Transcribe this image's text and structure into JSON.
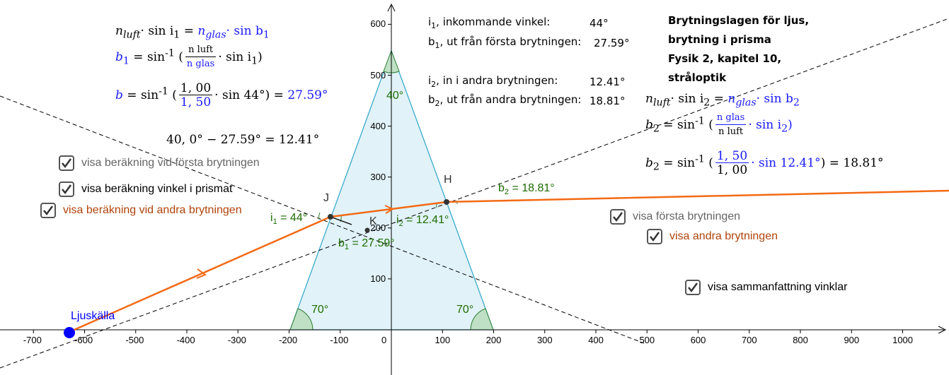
{
  "summary": {
    "line1_label": "i",
    "line1_sub": "1",
    "line1_text": ", inkommande vinkel:",
    "line1_value": "44°",
    "line2_label": "b",
    "line2_sub": "1",
    "line2_text": ", ut från första brytningen:",
    "line2_value": "27.59°",
    "line3_label": "i",
    "line3_sub": "2",
    "line3_text": ", in i andra brytningen:",
    "line3_value": "12.41°",
    "line4_label": "b",
    "line4_sub": "2",
    "line4_text": ", ut från andra brytningen:",
    "line4_value": "18.81°"
  },
  "title": {
    "line1": "Brytningslagen för ljus,",
    "line2": "brytning i prisma",
    "line3": "Fysik 2, kapitel 10,",
    "line4": "stråloptik"
  },
  "formulas_left": {
    "f1_n": "n",
    "f1_luft": "luft",
    "f1_mid": "· sin i",
    "f1_sub1": "1",
    "f1_eq": " = ",
    "f1_nglas": "n",
    "f1_glas": "glas",
    "f1_end": "·  sin b",
    "f1_sub2": "1",
    "f2_lhs": "b",
    "f2_lhs_sub": "1",
    "f2_eq": " = sin",
    "f2_exp": "-1",
    "f2_num": "n luft",
    "f2_den": "n glas",
    "f2_tail": "·  sin i",
    "f2_tail_sub": "1",
    "f3_lhs": "b",
    "f3_eq": " = sin",
    "f3_exp": "-1",
    "f3_num": "1, 00",
    "f3_den": "1, 50",
    "f3_tail": "·  sin 44°) = ",
    "f3_result": "27.59°",
    "f4": "40, 0° − 27.59° = 12.41°"
  },
  "formulas_right": {
    "f1_a": "n",
    "f1_luft": "luft",
    "f1_mid": "· sin i",
    "f1_sub": "2",
    "f1_eq": " = ",
    "f1_n": "n",
    "f1_glas": "glas",
    "f1_end": "·  sin b",
    "f1_sub2": "2",
    "f2_lhs": "b",
    "f2_sub": "2",
    "f2_eq": " = sin",
    "f2_exp": "-1",
    "f2_num": "n glas",
    "f2_den": "n luft",
    "f2_tail": "·  sin i",
    "f2_tail_sub": "2",
    "f3_lhs": "b",
    "f3_sub": "2",
    "f3_eq": " = sin",
    "f3_exp": "-1",
    "f3_num": "1, 50",
    "f3_den": "1, 00",
    "f3_tail": "·  sin 12.41°",
    "f3_result": ") = 18.81°"
  },
  "checkboxes": {
    "first_calc": {
      "label": "visa beräkning vid första brytningen",
      "color": "#666666",
      "checked": true
    },
    "prism_angle": {
      "label": "visa beräkning vinkel i prismat",
      "color": "#000000",
      "checked": true
    },
    "second_calc": {
      "label": "visa beräkning vid andra brytningen",
      "color": "#b0440b",
      "checked": true
    },
    "first_refr": {
      "label": "visa första brytningen",
      "color": "#666666",
      "checked": true
    },
    "second_refr": {
      "label": "visa andra brytningen",
      "color": "#b0440b",
      "checked": true
    },
    "summary_angles": {
      "label": "visa sammanfattning vinklar",
      "color": "#000000",
      "checked": true
    }
  },
  "graph": {
    "x_ticks": [
      "-700",
      "-600",
      "-500",
      "-400",
      "-300",
      "-200",
      "-100",
      "0",
      "100",
      "200",
      "300",
      "400",
      "500",
      "600",
      "700",
      "800",
      "900",
      "1000"
    ],
    "y_ticks": [
      "100",
      "200",
      "300",
      "400",
      "500",
      "600"
    ],
    "point_J": "J",
    "point_K": "K",
    "point_H": "H",
    "source_label": "Ljuskälla",
    "apex_angle": "40°",
    "left_base_angle": "70°",
    "right_base_angle": "70°",
    "angle_i1": "i",
    "angle_i1_sub": "1",
    "angle_i1_val": " = 44°",
    "angle_b1": "b",
    "angle_b1_sub": "1",
    "angle_b1_val": " = 27.59°",
    "angle_i2": "i",
    "angle_i2_sub": "2",
    "angle_i2_val": " = 12.41°",
    "angle_b2": "b",
    "angle_b2_sub": "2",
    "angle_b2_val": " = 18.81°",
    "colors": {
      "ray": "#f36a14",
      "prism_fill": "#e1f2f8",
      "prism_stroke": "#3aaccc",
      "angle_fill": "#bfe0c5",
      "source": "#0000ff",
      "green_text": "#1c6b00"
    }
  }
}
